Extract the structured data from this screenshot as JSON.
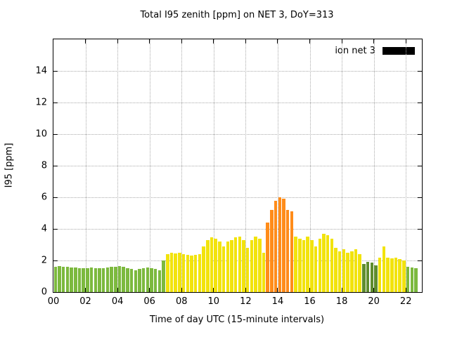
{
  "chart_data": {
    "type": "bar",
    "title": "Total I95 zenith [ppm] on NET 3, DoY=313",
    "xlabel": "Time of day UTC (15-minute intervals)",
    "ylabel": "I95 [ppm]",
    "legend": [
      {
        "name": "ion net 3",
        "color": "#000000"
      }
    ],
    "grid": true,
    "x_start_hour": 0,
    "x_interval_minutes": 15,
    "xlim_hours": [
      0,
      23
    ],
    "ylim": [
      0,
      16
    ],
    "x_tick_hours": [
      0,
      2,
      4,
      6,
      8,
      10,
      12,
      14,
      16,
      18,
      20,
      22
    ],
    "x_tick_labels": [
      "00",
      "02",
      "04",
      "06",
      "08",
      "10",
      "12",
      "14",
      "16",
      "18",
      "20",
      "22"
    ],
    "y_ticks": [
      0,
      2,
      4,
      6,
      8,
      10,
      12,
      14
    ],
    "palette": {
      "green": "#7cb93e",
      "darkgreen": "#5f8d2e",
      "yellow": "#f2e30c",
      "orange": "#ff8c1a"
    },
    "color_runs": [
      [
        "green",
        28
      ],
      [
        "yellow",
        25
      ],
      [
        "orange",
        7
      ],
      [
        "yellow",
        17
      ],
      [
        "darkgreen",
        4
      ],
      [
        "yellow",
        7
      ],
      [
        "green",
        3
      ]
    ],
    "values": [
      1.6,
      1.65,
      1.6,
      1.6,
      1.55,
      1.55,
      1.5,
      1.5,
      1.5,
      1.55,
      1.5,
      1.5,
      1.5,
      1.55,
      1.6,
      1.6,
      1.65,
      1.6,
      1.5,
      1.45,
      1.4,
      1.45,
      1.5,
      1.55,
      1.5,
      1.45,
      1.4,
      2.0,
      2.4,
      2.5,
      2.45,
      2.5,
      2.4,
      2.35,
      2.3,
      2.35,
      2.4,
      2.9,
      3.3,
      3.45,
      3.4,
      3.2,
      2.9,
      3.2,
      3.3,
      3.45,
      3.5,
      3.3,
      2.8,
      3.3,
      3.5,
      3.4,
      2.5,
      4.4,
      5.2,
      5.8,
      6.0,
      5.9,
      5.2,
      5.1,
      3.5,
      3.4,
      3.3,
      3.5,
      3.3,
      2.9,
      3.4,
      3.7,
      3.6,
      3.4,
      2.8,
      2.6,
      2.7,
      2.5,
      2.6,
      2.7,
      2.4,
      1.8,
      1.9,
      1.85,
      1.7,
      2.2,
      2.9,
      2.2,
      2.15,
      2.2,
      2.1,
      2.0,
      1.6,
      1.55,
      1.5
    ]
  }
}
